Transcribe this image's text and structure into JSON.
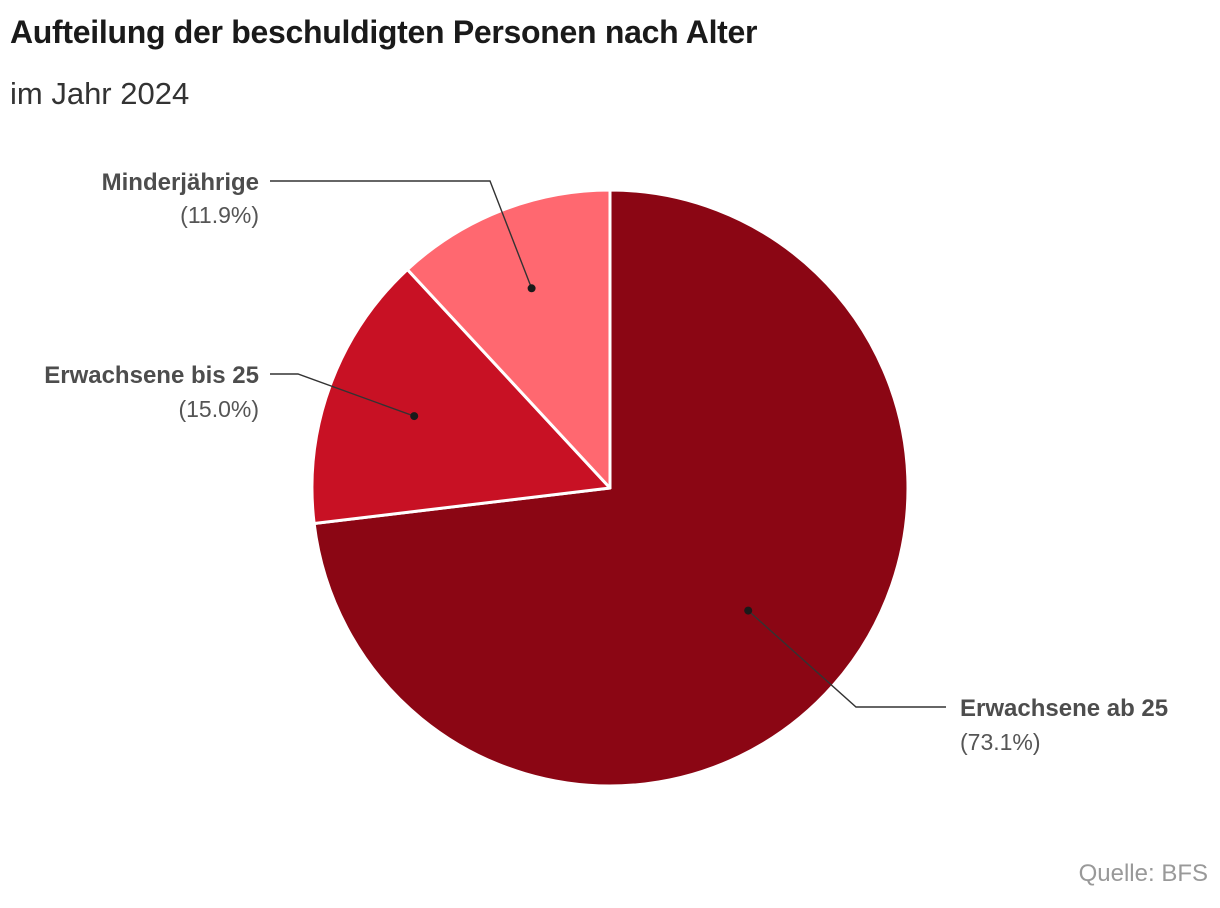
{
  "header": {
    "title": "Aufteilung der beschuldigten Personen nach Alter",
    "subtitle": "im Jahr 2024"
  },
  "footer": {
    "source": "Quelle: BFS"
  },
  "chart_data": {
    "type": "pie",
    "title": "Aufteilung der beschuldigten Personen nach Alter",
    "subtitle": "im Jahr 2024",
    "slices": [
      {
        "label": "Erwachsene ab 25",
        "value": 73.1,
        "pct_text": "(73.1%)",
        "color": "#8b0614"
      },
      {
        "label": "Erwachsene bis 25",
        "value": 15.0,
        "pct_text": "(15.0%)",
        "color": "#c81124"
      },
      {
        "label": "Minderjährige",
        "value": 11.9,
        "pct_text": "(11.9%)",
        "color": "#ff6870"
      }
    ],
    "start": "12 o'clock",
    "direction": "clockwise",
    "labels": "outside with leader lines",
    "legend": "none"
  }
}
